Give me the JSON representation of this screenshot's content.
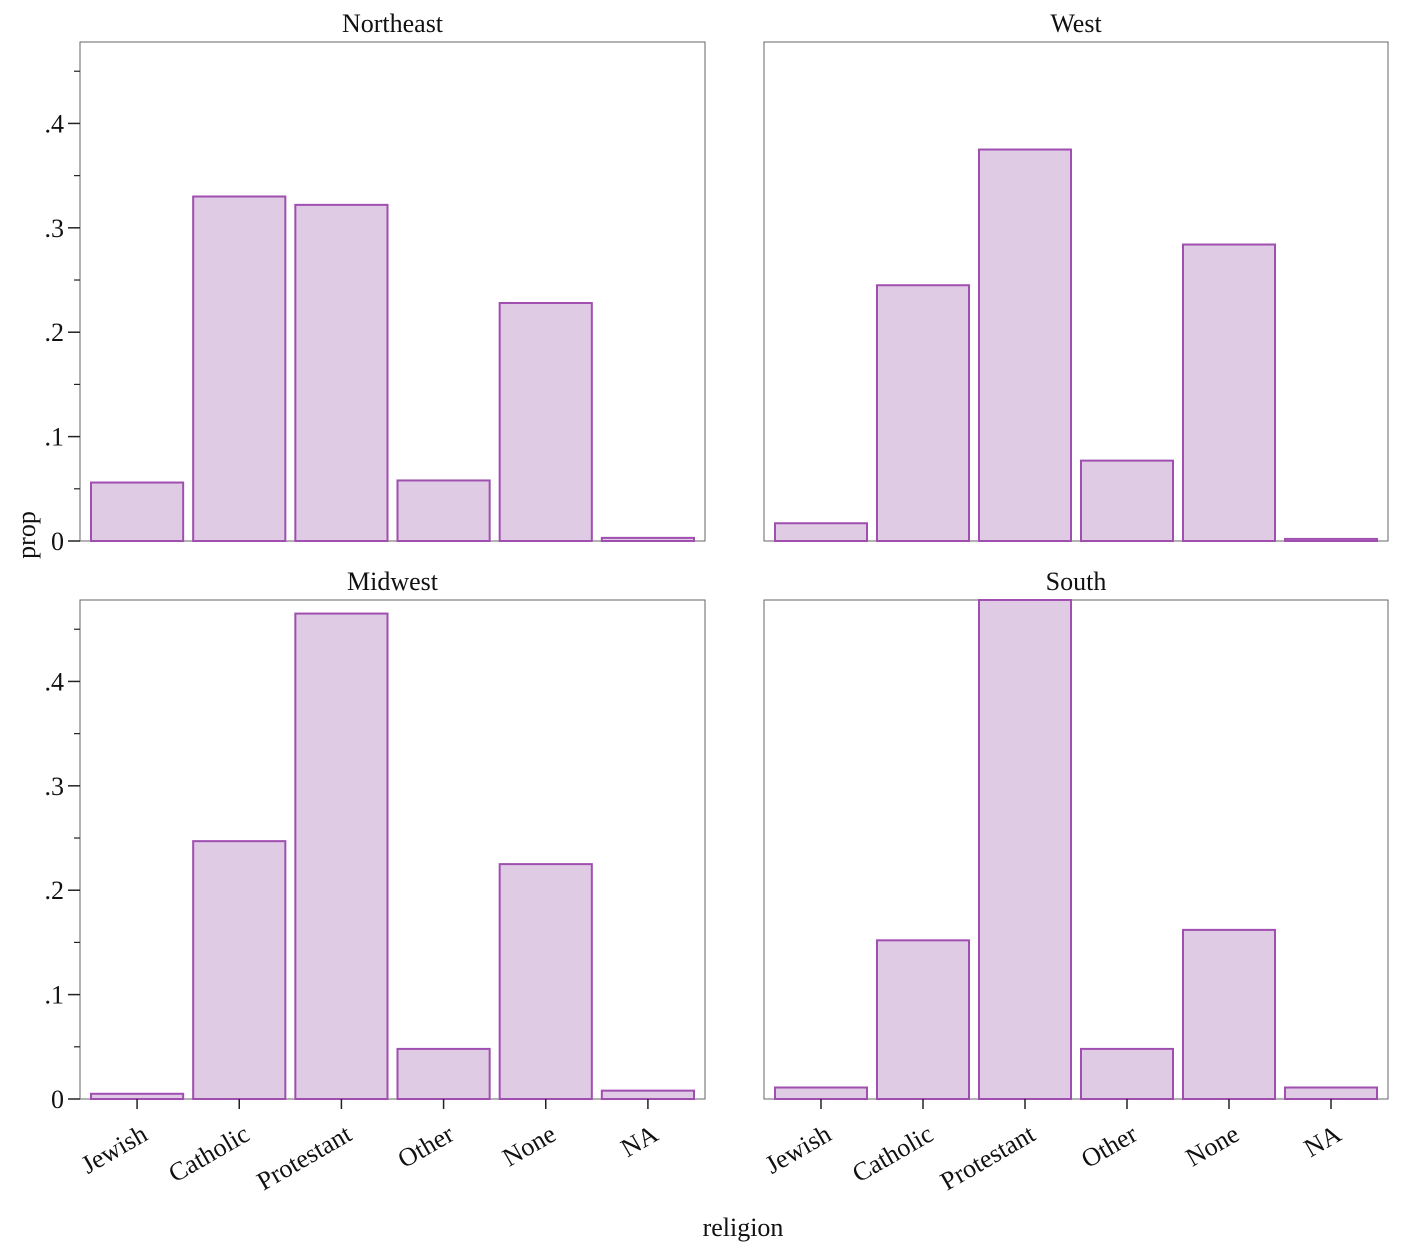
{
  "chart_data": {
    "type": "bar",
    "xlabel": "religion",
    "ylabel": "prop",
    "ylim": [
      0,
      0.478
    ],
    "yticks": [
      {
        "value": 0,
        "label": "0"
      },
      {
        "value": 0.1,
        "label": ".1"
      },
      {
        "value": 0.2,
        "label": ".2"
      },
      {
        "value": 0.3,
        "label": ".3"
      },
      {
        "value": 0.4,
        "label": ".4"
      }
    ],
    "y_minor_ticks": [
      0.05,
      0.15,
      0.25,
      0.35,
      0.45
    ],
    "categories": [
      "Jewish",
      "Catholic",
      "Protestant",
      "Other",
      "None",
      "NA"
    ],
    "colors": {
      "bar_fill": "#dfcbe4",
      "bar_stroke": "#a04eb0",
      "frame": "#666666"
    },
    "grid": false,
    "legend": "none",
    "panels": [
      {
        "title": "Northeast",
        "values": [
          0.056,
          0.33,
          0.322,
          0.058,
          0.228,
          0.003
        ]
      },
      {
        "title": "West",
        "values": [
          0.017,
          0.245,
          0.375,
          0.077,
          0.284,
          0.002
        ]
      },
      {
        "title": "Midwest",
        "values": [
          0.005,
          0.247,
          0.465,
          0.048,
          0.225,
          0.008
        ]
      },
      {
        "title": "South",
        "values": [
          0.011,
          0.152,
          0.478,
          0.048,
          0.162,
          0.011
        ]
      }
    ]
  }
}
